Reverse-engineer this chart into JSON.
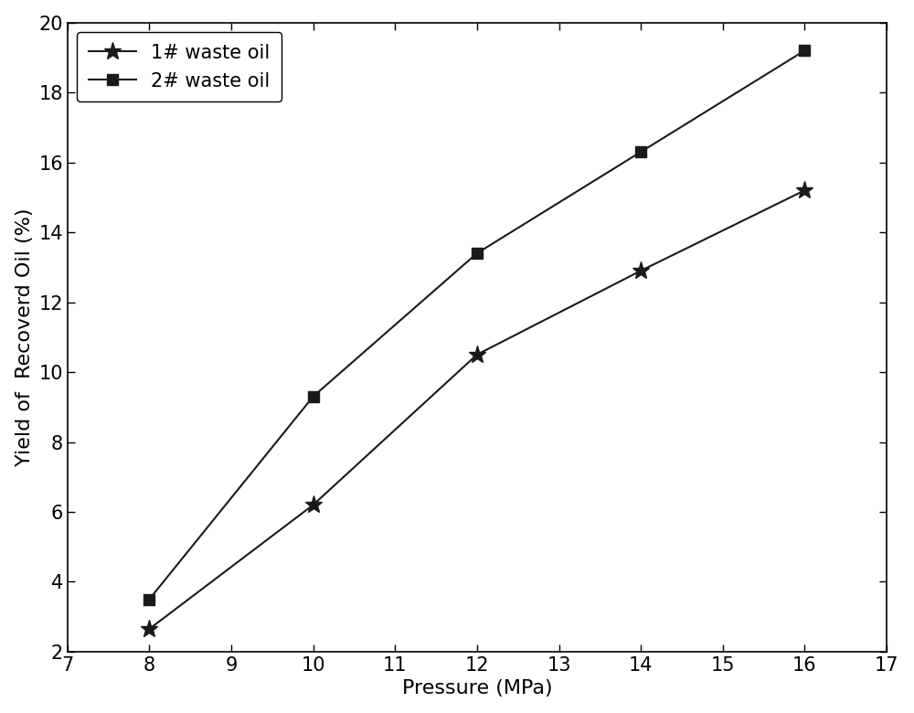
{
  "pressure": [
    8,
    10,
    12,
    14,
    16
  ],
  "series1_y": [
    2.65,
    6.2,
    10.5,
    12.9,
    15.2
  ],
  "series2_y": [
    3.5,
    9.3,
    13.4,
    16.3,
    19.2
  ],
  "series1_label": "1# waste oil",
  "series2_label": "2# waste oil",
  "xlabel": "Pressure (MPa)",
  "ylabel": "Yield of  Recoverd Oil (%)",
  "xlim": [
    7,
    17
  ],
  "ylim": [
    2,
    20
  ],
  "xticks": [
    7,
    8,
    9,
    10,
    11,
    12,
    13,
    14,
    15,
    16,
    17
  ],
  "yticks": [
    2,
    4,
    6,
    8,
    10,
    12,
    14,
    16,
    18,
    20
  ],
  "line_color": "#1a1a1a",
  "marker1": "*",
  "marker2": "s",
  "markersize1": 14,
  "markersize2": 9,
  "linewidth": 1.5,
  "fontsize_label": 16,
  "fontsize_tick": 15,
  "fontsize_legend": 15,
  "background_color": "#ffffff"
}
